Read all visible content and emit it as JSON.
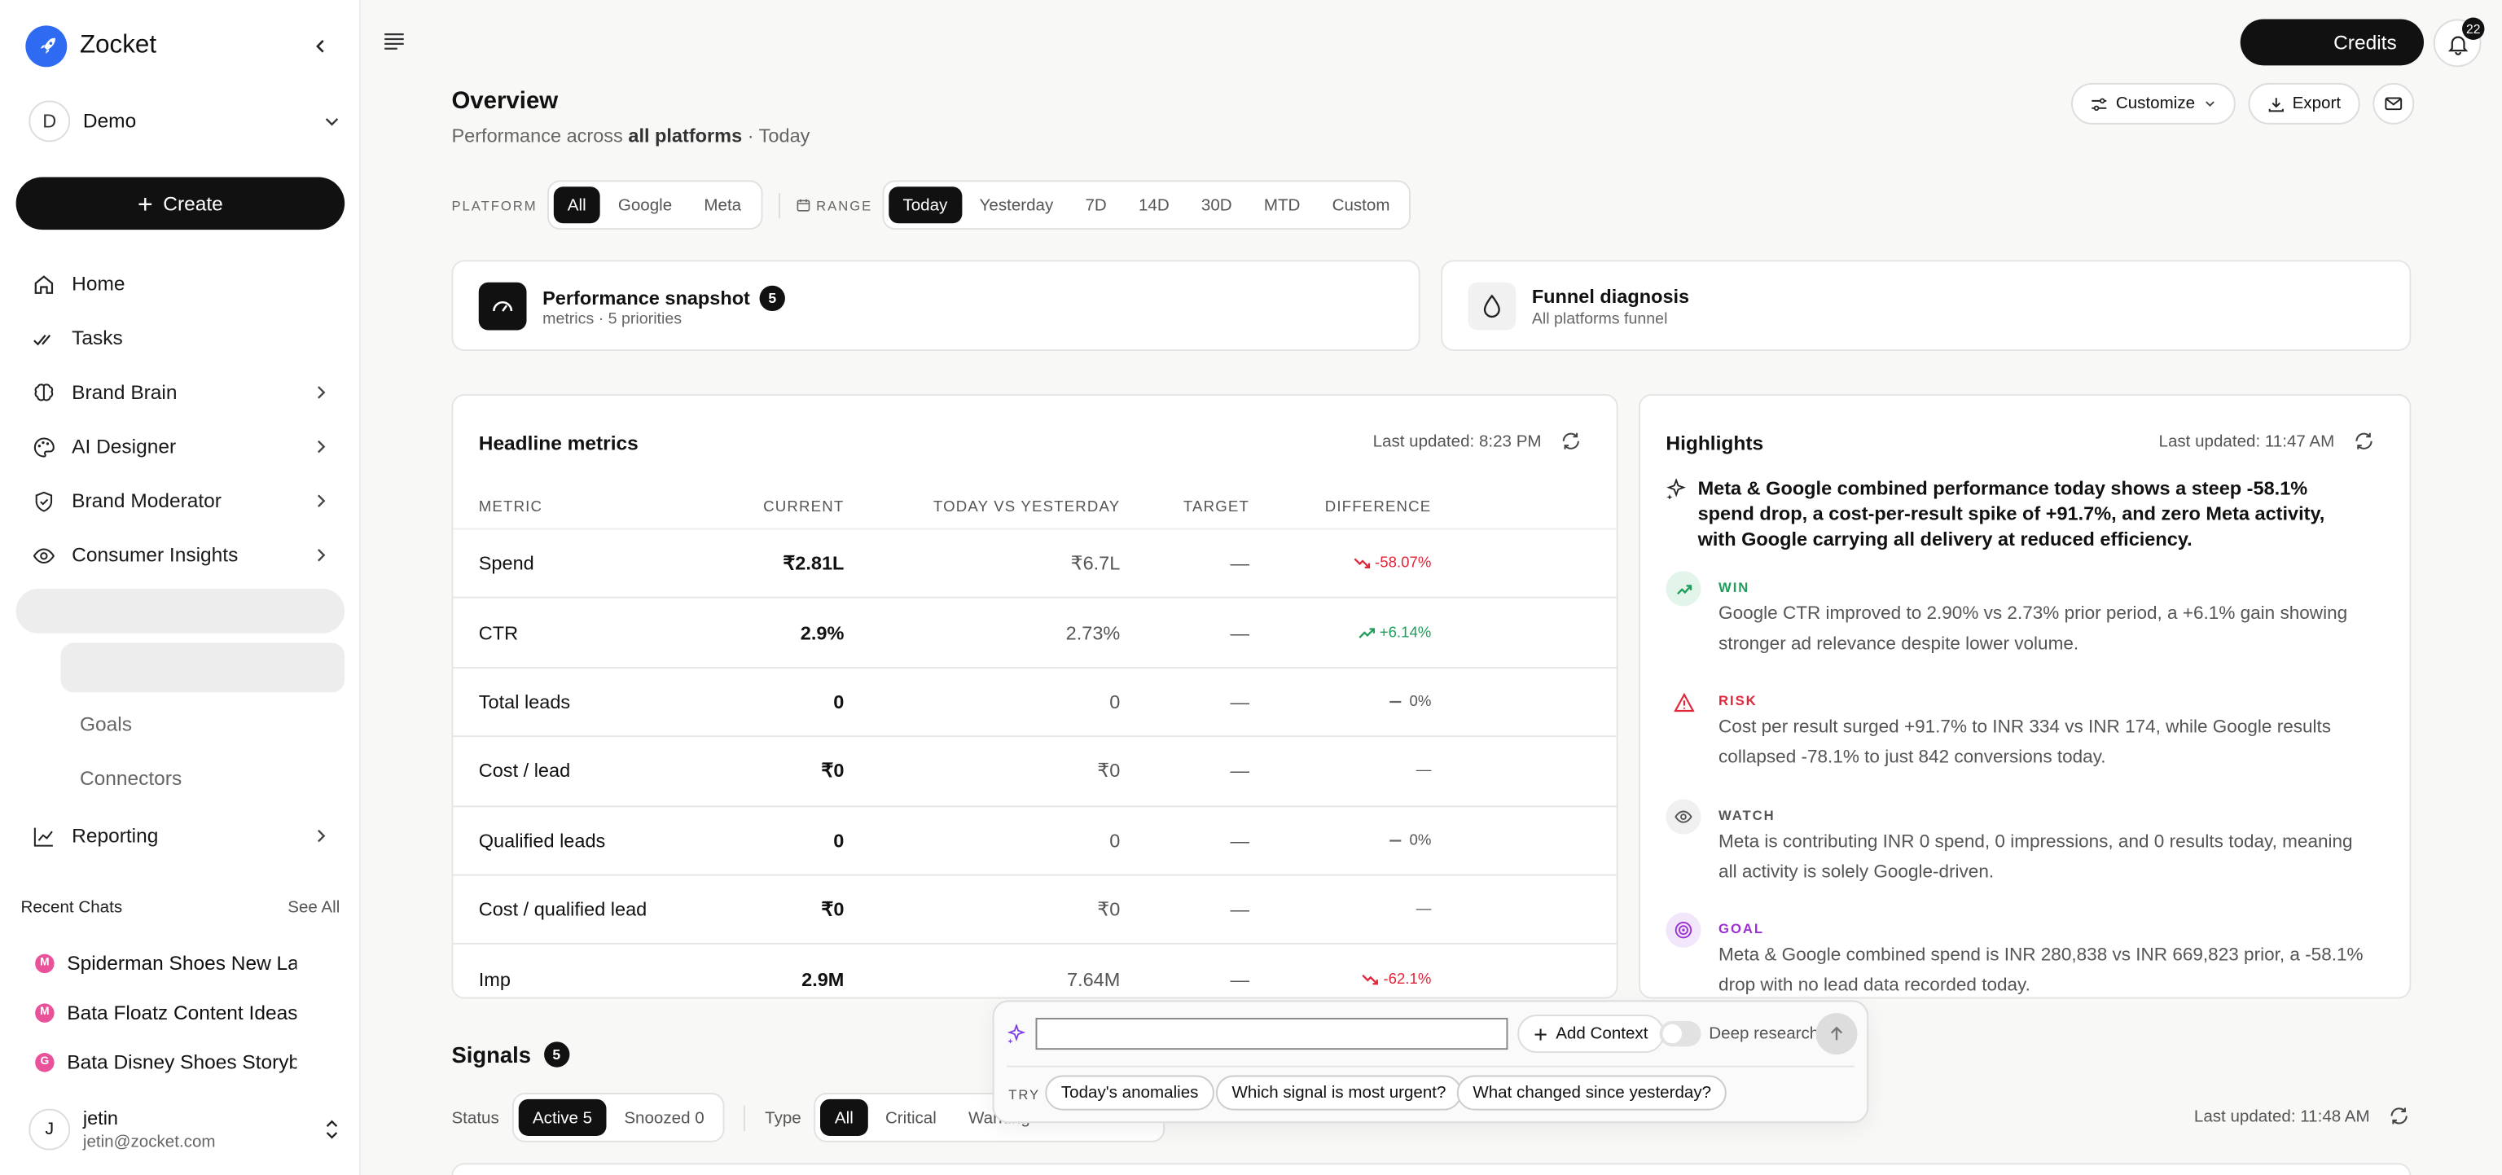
{
  "sidebar": {
    "brand": "Zocket",
    "workspace": {
      "initial": "D",
      "name": "Demo"
    },
    "create_label": "Create",
    "nav": [
      {
        "label": "Home",
        "icon": "home-icon"
      },
      {
        "label": "Tasks",
        "icon": "tasks-icon"
      },
      {
        "label": "Brand Brain",
        "icon": "brain-icon"
      },
      {
        "label": "AI Designer",
        "icon": "palette-icon"
      },
      {
        "label": "Brand Moderator",
        "icon": "shield-icon"
      },
      {
        "label": "Consumer Insights",
        "icon": "eye-icon"
      }
    ],
    "sub_nav": [
      "Goals",
      "Connectors"
    ],
    "reporting_label": "Reporting",
    "recent_title": "Recent Chats",
    "see_all": "See All",
    "recent": [
      {
        "badge": "M",
        "title": "Spiderman Shoes New Laur"
      },
      {
        "badge": "M",
        "title": "Bata Floatz Content Ideas"
      },
      {
        "badge": "G",
        "title": "Bata Disney Shoes Storyboa"
      }
    ],
    "user": {
      "initial": "J",
      "name": "jetin",
      "email": "jetin@zocket.com"
    }
  },
  "topbar": {
    "credits_label": "Credits",
    "notification_count": "22"
  },
  "header": {
    "title": "Overview",
    "subtitle_prefix": "Performance across",
    "subtitle_bold": "all platforms",
    "subtitle_suffix": "· Today",
    "customize_label": "Customize",
    "export_label": "Export"
  },
  "filters": {
    "platform_label": "PLATFORM",
    "platforms": [
      "All",
      "Google",
      "Meta"
    ],
    "range_label": "RANGE",
    "ranges": [
      "Today",
      "Yesterday",
      "7D",
      "14D",
      "30D",
      "MTD",
      "Custom"
    ]
  },
  "snapshot": {
    "title": "Performance snapshot",
    "count": "5",
    "sub": "metrics · 5 priorities"
  },
  "funnel": {
    "title": "Funnel diagnosis",
    "sub": "All platforms funnel"
  },
  "metrics": {
    "title": "Headline metrics",
    "updated": "Last updated: 8:23 PM",
    "columns": [
      "METRIC",
      "CURRENT",
      "TODAY VS YESTERDAY",
      "TARGET",
      "DIFFERENCE"
    ],
    "rows": [
      {
        "metric": "Spend",
        "current": "₹2.81L",
        "vs": "₹6.7L",
        "target": "—",
        "diff": "-58.07%",
        "trend": "down"
      },
      {
        "metric": "CTR",
        "current": "2.9%",
        "vs": "2.73%",
        "target": "—",
        "diff": "+6.14%",
        "trend": "up"
      },
      {
        "metric": "Total leads",
        "current": "0",
        "vs": "0",
        "target": "—",
        "diff": "0%",
        "trend": "flat"
      },
      {
        "metric": "Cost / lead",
        "current": "₹0",
        "vs": "₹0",
        "target": "—",
        "diff": "—",
        "trend": "none"
      },
      {
        "metric": "Qualified leads",
        "current": "0",
        "vs": "0",
        "target": "—",
        "diff": "0%",
        "trend": "flat"
      },
      {
        "metric": "Cost / qualified lead",
        "current": "₹0",
        "vs": "₹0",
        "target": "—",
        "diff": "—",
        "trend": "none"
      },
      {
        "metric": "Imp",
        "current": "2.9M",
        "vs": "7.64M",
        "target": "—",
        "diff": "-62.1%",
        "trend": "down"
      }
    ]
  },
  "highlights": {
    "title": "Highlights",
    "updated": "Last updated: 11:47 AM",
    "headline": "Meta & Google combined performance today shows a steep -58.1% spend drop, a cost-per-result spike of +91.7%, and zero Meta activity, with Google carrying all delivery at reduced efficiency.",
    "items": [
      {
        "tag": "WIN",
        "color": "#1e9e5a",
        "text": "Google CTR improved to 2.90% vs 2.73% prior period, a +6.1% gain showing stronger ad relevance despite lower volume."
      },
      {
        "tag": "RISK",
        "color": "#e0263a",
        "text": "Cost per result surged +91.7% to INR 334 vs INR 174, while Google results collapsed -78.1% to just 842 conversions today."
      },
      {
        "tag": "WATCH",
        "color": "#555555",
        "text": "Meta is contributing INR 0 spend, 0 impressions, and 0 results today, meaning all activity is solely Google-driven."
      },
      {
        "tag": "GOAL",
        "color": "#9b2fd4",
        "text": "Meta & Google combined spend is INR 280,838 vs INR 669,823 prior, a -58.1% drop with no lead data recorded today."
      }
    ]
  },
  "signals": {
    "title": "Signals",
    "count": "5",
    "status_label": "Status",
    "status_opts": [
      "Active 5",
      "Snoozed 0"
    ],
    "type_label": "Type",
    "type_opts": [
      "All",
      "Critical",
      "Warning"
    ],
    "updated": "Last updated: 11:48 AM"
  },
  "chat": {
    "input_value": "",
    "add_context": "Add Context",
    "deep_research": "Deep research",
    "try_label": "TRY",
    "suggestions": [
      "Today's anomalies",
      "Which signal is most urgent?",
      "What changed since yesterday?"
    ]
  }
}
